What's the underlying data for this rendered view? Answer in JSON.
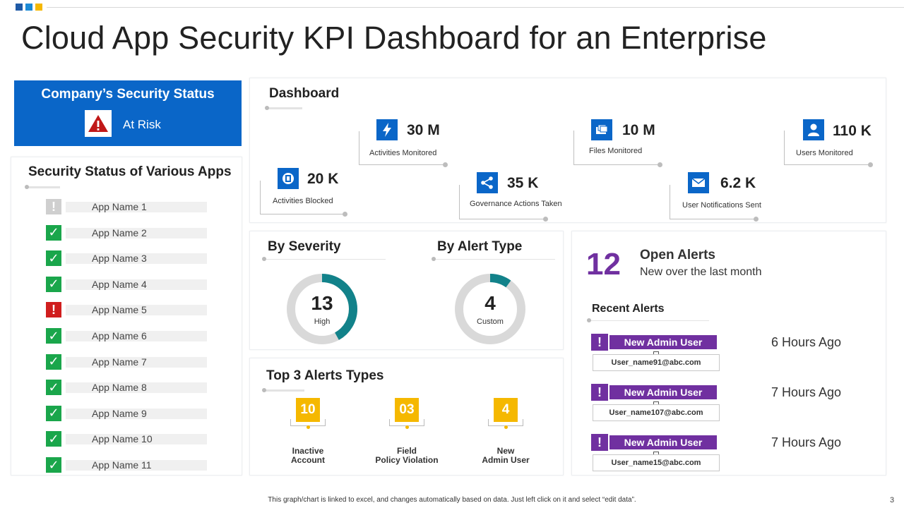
{
  "page": {
    "title": "Cloud App Security KPI Dashboard for an Enterprise",
    "footer_note": "This graph/chart is linked to excel, and changes automatically based on data. Just left click on it and select “edit data”.",
    "page_number": "3"
  },
  "colors": {
    "blue": "#0a66c8",
    "teal": "#12828a",
    "purple": "#7030a0",
    "yellow": "#f5b800",
    "green": "#1aa64b",
    "red": "#d01e1e",
    "gray": "#cfcfcf"
  },
  "status": {
    "title": "Company’s Security Status",
    "value": "At Risk",
    "icon": "warning-icon"
  },
  "apps": {
    "title": "Security Status of Various Apps",
    "items": [
      {
        "label": "App Name  1",
        "status": "unknown"
      },
      {
        "label": "App Name  2",
        "status": "ok"
      },
      {
        "label": "App Name  3",
        "status": "ok"
      },
      {
        "label": "App Name  4",
        "status": "ok"
      },
      {
        "label": "App Name  5",
        "status": "risk"
      },
      {
        "label": "App Name  6",
        "status": "ok"
      },
      {
        "label": "App Name  7",
        "status": "ok"
      },
      {
        "label": "App Name  8",
        "status": "ok"
      },
      {
        "label": "App Name  9",
        "status": "ok"
      },
      {
        "label": "App Name  10",
        "status": "ok"
      },
      {
        "label": "App Name  11",
        "status": "ok"
      }
    ]
  },
  "dashboard": {
    "title": "Dashboard",
    "kpis": [
      {
        "value": "20 K",
        "label": "Activities Blocked",
        "icon": "block-icon"
      },
      {
        "value": "30 M",
        "label": "Activities Monitored",
        "icon": "bolt-icon"
      },
      {
        "value": "35 K",
        "label": "Governance Actions Taken",
        "icon": "share-icon"
      },
      {
        "value": "10 M",
        "label": "Files Monitored",
        "icon": "folder-icon"
      },
      {
        "value": "6.2 K",
        "label": "User Notifications Sent",
        "icon": "mail-icon"
      },
      {
        "value": "110 K",
        "label": "Users Monitored",
        "icon": "user-icon"
      }
    ]
  },
  "severity": {
    "title": "By Severity",
    "value": "13",
    "label": "High",
    "fraction": 0.42
  },
  "alert_type": {
    "title": "By Alert Type",
    "value": "4",
    "label": "Custom",
    "fraction": 0.1
  },
  "top3": {
    "title": "Top 3 Alerts Types",
    "items": [
      {
        "value": "10",
        "line1": "Inactive",
        "line2": "Account"
      },
      {
        "value": "03",
        "line1": "Field",
        "line2": "Policy Violation"
      },
      {
        "value": "4",
        "line1": "New",
        "line2": "Admin User"
      }
    ]
  },
  "open_alerts": {
    "count": "12",
    "title": "Open Alerts",
    "subtitle": "New over the last month"
  },
  "recent_alerts": {
    "title": "Recent Alerts",
    "items": [
      {
        "type": "New Admin  User",
        "user": "User_name91@abc.com",
        "time": "6 Hours Ago"
      },
      {
        "type": "New Admin  User",
        "user": "User_name107@abc.com",
        "time": "7 Hours Ago"
      },
      {
        "type": "New Admin  User",
        "user": "User_name15@abc.com",
        "time": "7 Hours Ago"
      }
    ]
  }
}
